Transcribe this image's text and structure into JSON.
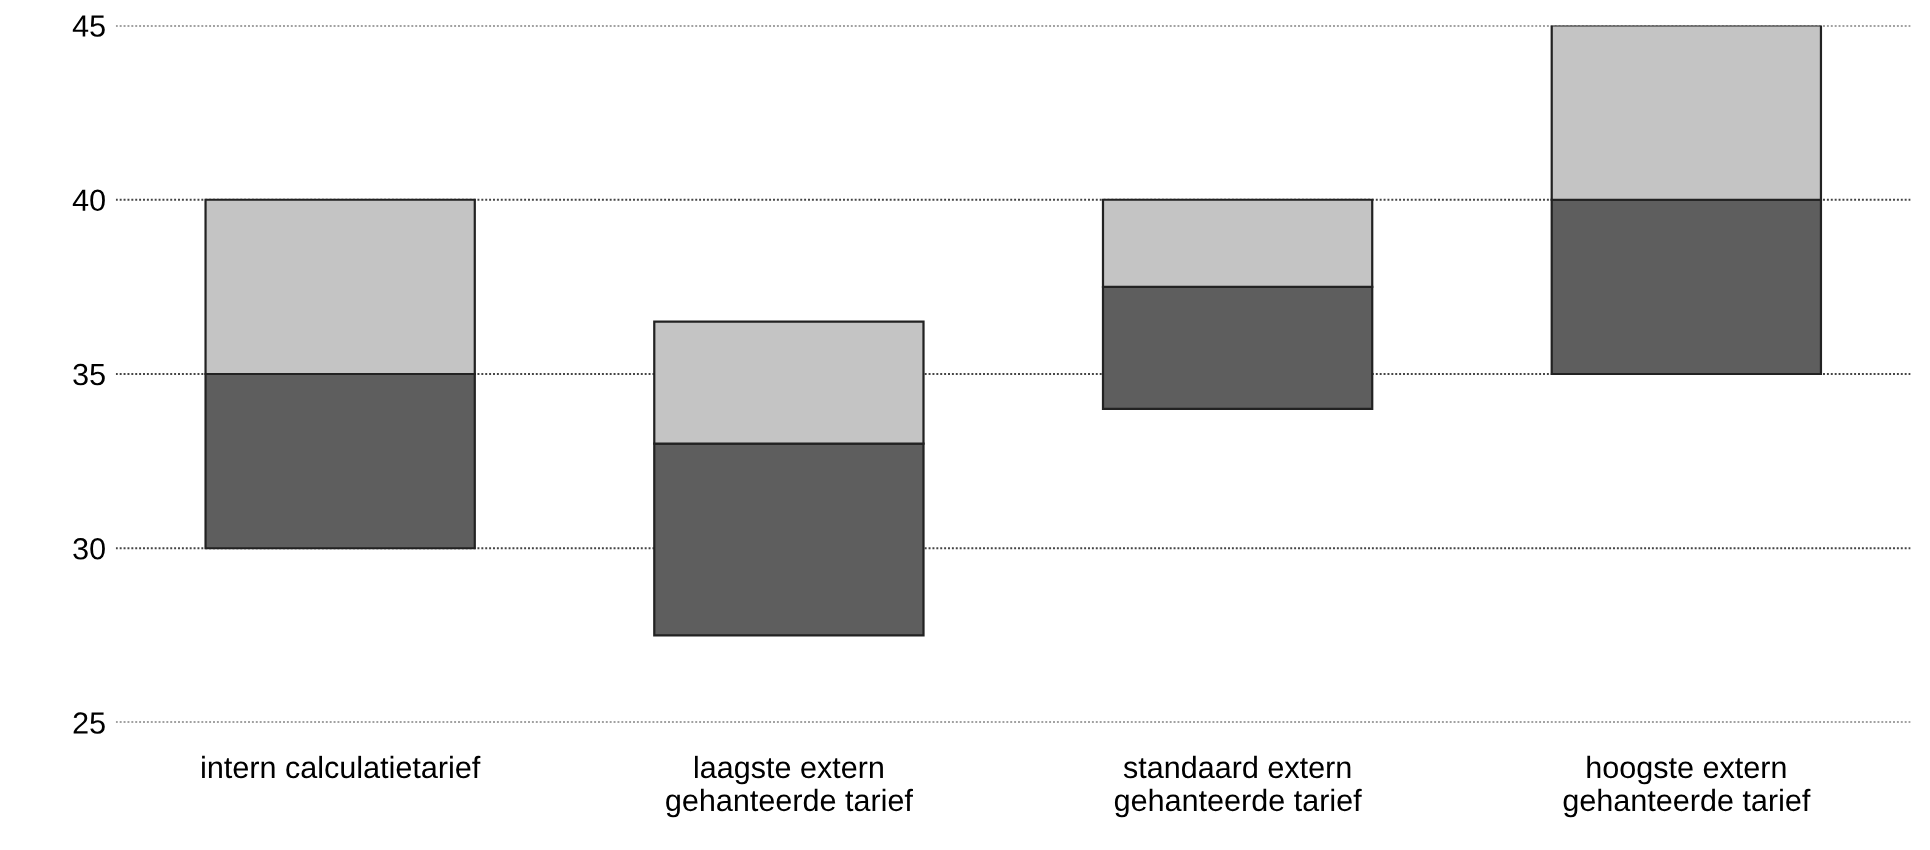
{
  "chart_data": {
    "type": "bar",
    "categories": [
      "intern calculatietarief",
      "laagste extern\ngehanteerde tarief",
      "standaard extern\ngehanteerde tarief",
      "hoogste extern\ngehanteerde tarief"
    ],
    "series": [
      {
        "color": "#5e5e5e",
        "base": [
          30,
          27.5,
          34,
          35
        ],
        "values": [
          5,
          5.5,
          3.5,
          5
        ]
      },
      {
        "color": "#c4c4c4",
        "base": [
          35,
          33,
          37.5,
          40
        ],
        "values": [
          5,
          3.5,
          2.5,
          5
        ]
      }
    ],
    "ylim": [
      25,
      45
    ],
    "yticks": [
      25,
      30,
      35,
      40,
      45
    ],
    "grid": "y"
  }
}
